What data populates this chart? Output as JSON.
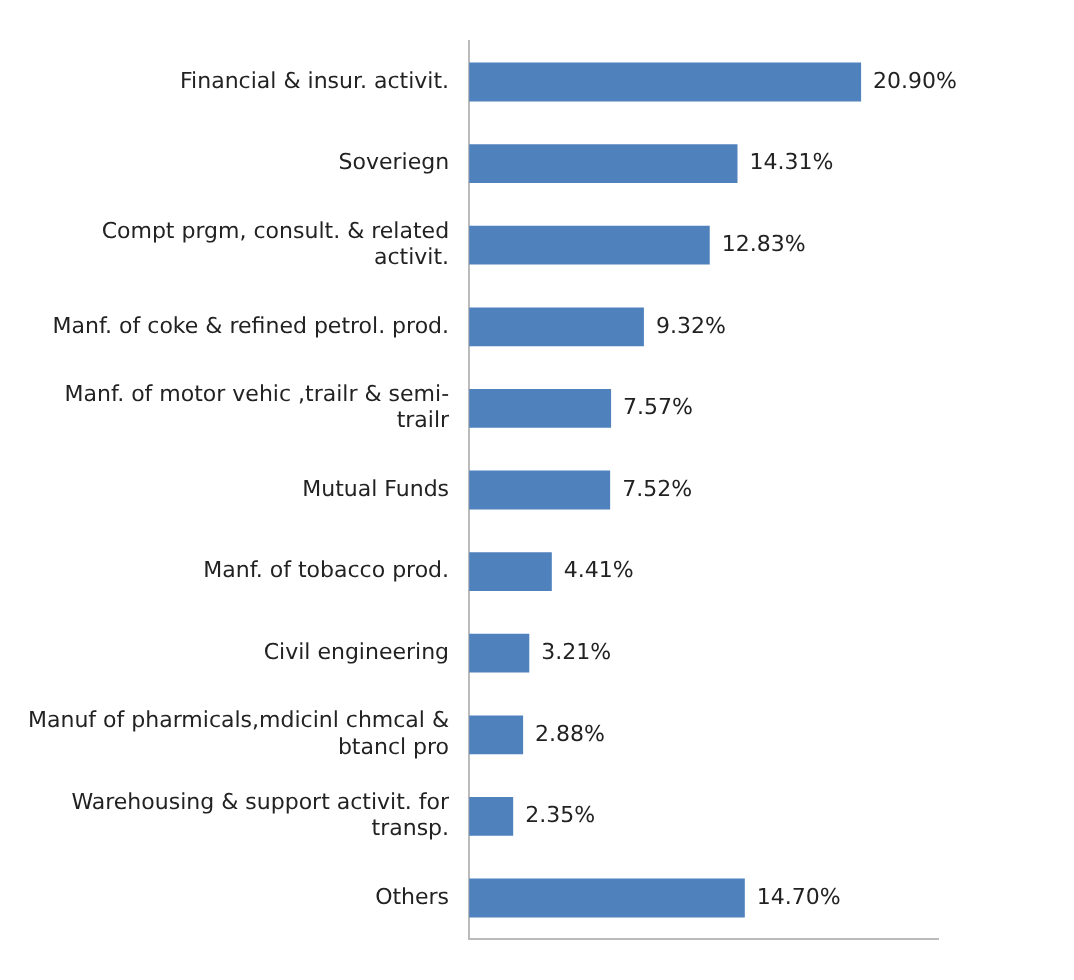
{
  "chart_data": {
    "type": "bar",
    "orientation": "horizontal",
    "categories": [
      "Financial & insur. activit.",
      "Soveriegn",
      "Compt prgm, consult. & related activit.",
      "Manf. of coke & refined petrol. prod.",
      "Manf. of motor vehic ,trailr & semi-trailr",
      "Mutual Funds",
      "Manf. of tobacco prod.",
      "Civil engineering",
      "Manuf of pharmicals,mdicinl chmcal & btancl pro",
      "Warehousing & support activit. for transp.",
      "Others"
    ],
    "values": [
      20.9,
      14.31,
      12.83,
      9.32,
      7.57,
      7.52,
      4.41,
      3.21,
      2.88,
      2.35,
      14.7
    ],
    "value_labels": [
      "20.90%",
      "14.31%",
      "12.83%",
      "9.32%",
      "7.57%",
      "7.52%",
      "4.41%",
      "3.21%",
      "2.88%",
      "2.35%",
      "14.70%"
    ],
    "color": "#4f81bd",
    "grid": false,
    "legend": false,
    "tick_labels": "y"
  }
}
